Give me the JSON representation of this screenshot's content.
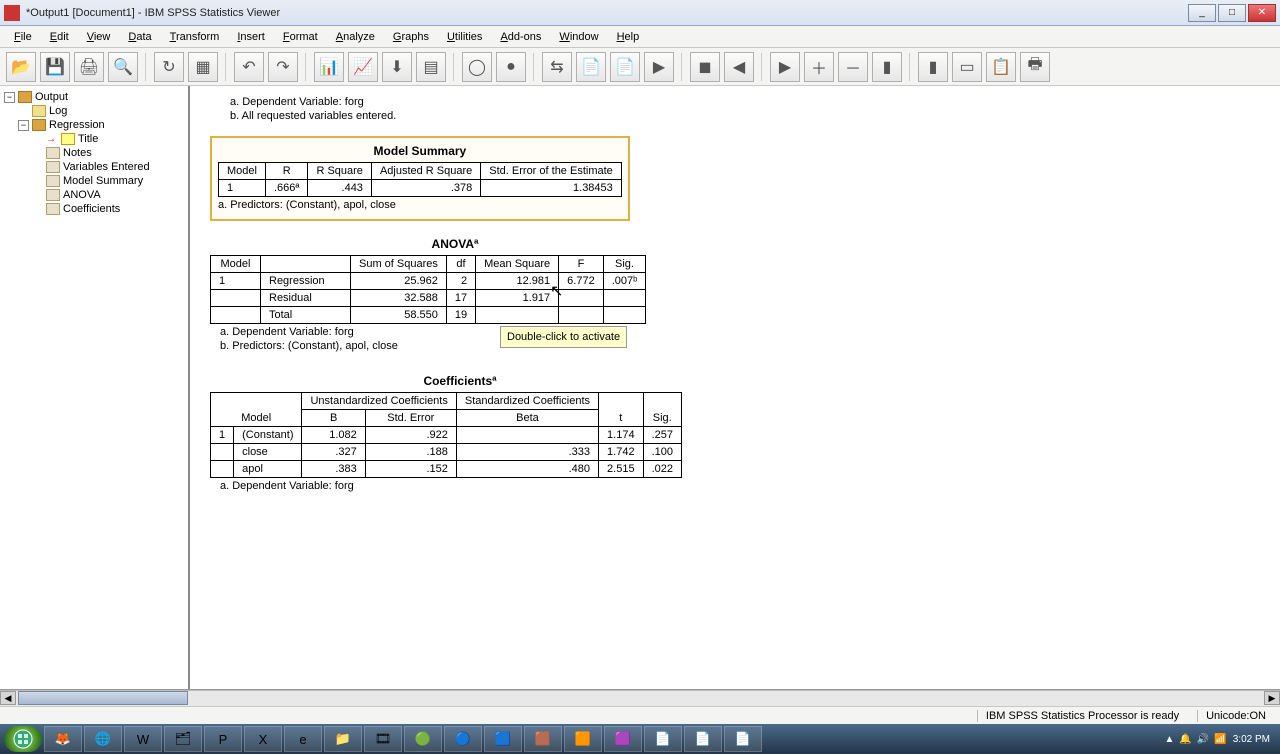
{
  "window": {
    "title": "*Output1 [Document1] - IBM SPSS Statistics Viewer",
    "btn_min": "_",
    "btn_max": "□",
    "btn_close": "✕"
  },
  "menu": [
    "File",
    "Edit",
    "View",
    "Data",
    "Transform",
    "Insert",
    "Format",
    "Analyze",
    "Graphs",
    "Utilities",
    "Add-ons",
    "Window",
    "Help"
  ],
  "tree": {
    "root": "Output",
    "log": "Log",
    "regression": "Regression",
    "items": [
      "Title",
      "Notes",
      "Variables Entered",
      "Model Summary",
      "ANOVA",
      "Coefficients"
    ]
  },
  "notes": {
    "dep_var": "a. Dependent Variable: forg",
    "all_entered": "b. All requested variables entered.",
    "predictors": "a. Predictors: (Constant), apol, close",
    "dep_var2": "a. Dependent Variable: forg",
    "predictors2": "b. Predictors: (Constant), apol, close",
    "dep_var3": "a. Dependent Variable: forg"
  },
  "tooltip": "Double-click to\nactivate",
  "model_summary": {
    "title": "Model Summary",
    "headers": [
      "Model",
      "R",
      "R Square",
      "Adjusted R Square",
      "Std. Error of the Estimate"
    ],
    "row": [
      "1",
      ".666ª",
      ".443",
      ".378",
      "1.38453"
    ]
  },
  "anova": {
    "title": "ANOVAª",
    "headers": [
      "Model",
      "",
      "Sum of Squares",
      "df",
      "Mean Square",
      "F",
      "Sig."
    ],
    "rows": [
      [
        "1",
        "Regression",
        "25.962",
        "2",
        "12.981",
        "6.772",
        ".007ᵇ"
      ],
      [
        "",
        "Residual",
        "32.588",
        "17",
        "1.917",
        "",
        ""
      ],
      [
        "",
        "Total",
        "58.550",
        "19",
        "",
        "",
        ""
      ]
    ]
  },
  "coefficients": {
    "title": "Coefficientsª",
    "group1": "Unstandardized Coefficients",
    "group2": "Standardized Coefficients",
    "headers": [
      "Model",
      "",
      "B",
      "Std. Error",
      "Beta",
      "t",
      "Sig."
    ],
    "rows": [
      [
        "1",
        "(Constant)",
        "1.082",
        ".922",
        "",
        "1.174",
        ".257"
      ],
      [
        "",
        "close",
        ".327",
        ".188",
        ".333",
        "1.742",
        ".100"
      ],
      [
        "",
        "apol",
        ".383",
        ".152",
        ".480",
        "2.515",
        ".022"
      ]
    ]
  },
  "status": {
    "processor": "IBM SPSS Statistics Processor is ready",
    "unicode": "Unicode:ON"
  },
  "clock": {
    "time": "3:02 PM"
  },
  "toolbar_icons": [
    "📂",
    "💾",
    "🖨",
    "🔍",
    "↻",
    "▦",
    "↶",
    "↷",
    "📊",
    "📈",
    "⬇",
    "▤",
    "◯",
    "●",
    "⇆",
    "📄",
    "📄",
    "▶",
    "◼",
    "◀",
    "▶",
    "＋",
    "－",
    "▮",
    "▮",
    "▭",
    "📋",
    "🖶"
  ],
  "taskbar_icons": [
    "🦊",
    "🌐",
    "W",
    "🗂",
    "P",
    "X",
    "e",
    "📁",
    "🎞",
    "🟢",
    "🔵",
    "🟦",
    "🟫",
    "🟧",
    "🟪",
    "📄",
    "📄",
    "📄"
  ],
  "tray_icons": [
    "▲",
    "🔔",
    "🔊",
    "📶"
  ]
}
